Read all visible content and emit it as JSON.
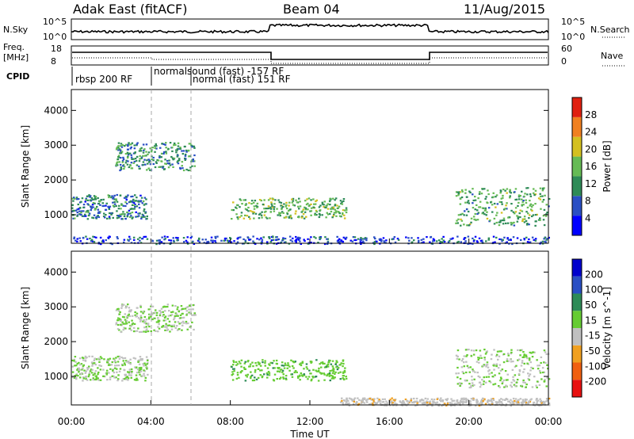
{
  "header": {
    "title_left": "Adak East (fitACF)",
    "title_center": "Beam 04",
    "title_right": "11/Aug/2015"
  },
  "strips": {
    "nsky_label": "N.Sky",
    "nsearch_label": "N.Search",
    "freq_label_line1": "Freq.",
    "freq_label_line2": "[MHz]",
    "nave_label": "Nave",
    "cpid_label": "CPID",
    "nsky_ticks": [
      "10^5",
      "10^0"
    ],
    "nsearch_ticks": [
      "10^5",
      "10^0"
    ],
    "freq_ticks": [
      "18",
      "8"
    ],
    "nave_ticks": [
      "60",
      "0"
    ],
    "cpid_segments": [
      "rbsp 200 RF",
      "normalsound (fast) -157 RF",
      "normal (fast) 151 RF"
    ]
  },
  "chart_data": [
    {
      "type": "heatmap",
      "title": "",
      "xlabel": "Time UT",
      "ylabel": "Slant Range [km]",
      "xlim": [
        0,
        24
      ],
      "ylim": [
        180,
        4600
      ],
      "xticks": [
        "00:00",
        "04:00",
        "08:00",
        "12:00",
        "16:00",
        "20:00",
        "00:00"
      ],
      "yticks": [
        "1000",
        "2000",
        "3000",
        "4000"
      ],
      "colorbar": {
        "label": "Power [dB]",
        "ticks": [
          "28",
          "24",
          "20",
          "16",
          "12",
          "8",
          "4"
        ],
        "range": [
          0,
          30
        ],
        "colors": [
          "#0000ff",
          "#2a4fc4",
          "#2e8b57",
          "#66bb55",
          "#d4c020",
          "#f08020",
          "#e02010"
        ]
      },
      "echo_regions": [
        {
          "name": "early-ionospheric",
          "t_start": 0.0,
          "t_end": 3.8,
          "r_start": 900,
          "r_end": 1600,
          "level": 9
        },
        {
          "name": "morning-band",
          "t_start": 2.2,
          "t_end": 6.2,
          "r_start": 2300,
          "r_end": 3100,
          "level": 11
        },
        {
          "name": "midday-band",
          "t_start": 8.0,
          "t_end": 13.8,
          "r_start": 900,
          "r_end": 1500,
          "level": 14
        },
        {
          "name": "evening-band",
          "t_start": 19.3,
          "t_end": 24.0,
          "r_start": 700,
          "r_end": 1800,
          "level": 13
        },
        {
          "name": "ground-clutter",
          "t_start": 0.0,
          "t_end": 24.0,
          "r_start": 180,
          "r_end": 400,
          "level": 6
        }
      ]
    },
    {
      "type": "heatmap",
      "title": "",
      "xlabel": "Time UT",
      "ylabel": "Slant Range [km]",
      "xlim": [
        0,
        24
      ],
      "ylim": [
        180,
        4600
      ],
      "xticks": [
        "00:00",
        "04:00",
        "08:00",
        "12:00",
        "16:00",
        "20:00",
        "00:00"
      ],
      "yticks": [
        "1000",
        "2000",
        "3000",
        "4000"
      ],
      "colorbar": {
        "label": "Velocity [m s^-1]",
        "ticks": [
          "200",
          "100",
          "50",
          "15",
          "-15",
          "-50",
          "-100",
          "-200"
        ],
        "range": [
          -250,
          250
        ],
        "colors": [
          "#e81010",
          "#f06010",
          "#f0a020",
          "#c0c0c0",
          "#66cc33",
          "#2e8b57",
          "#2a4fc4",
          "#0000cc"
        ]
      },
      "echo_regions": [
        {
          "name": "early-ionospheric",
          "t_start": 0.0,
          "t_end": 3.8,
          "r_start": 900,
          "r_end": 1600,
          "velocity": 0
        },
        {
          "name": "morning-band",
          "t_start": 2.2,
          "t_end": 6.2,
          "r_start": 2300,
          "r_end": 3100,
          "velocity": 0
        },
        {
          "name": "midday-band",
          "t_start": 8.0,
          "t_end": 13.8,
          "r_start": 900,
          "r_end": 1500,
          "velocity": 40
        },
        {
          "name": "evening-band",
          "t_start": 19.3,
          "t_end": 24.0,
          "r_start": 700,
          "r_end": 1800,
          "velocity": 0
        },
        {
          "name": "ground-clutter",
          "t_start": 13.5,
          "t_end": 24.0,
          "r_start": 180,
          "r_end": 400,
          "velocity": -40
        }
      ]
    }
  ]
}
